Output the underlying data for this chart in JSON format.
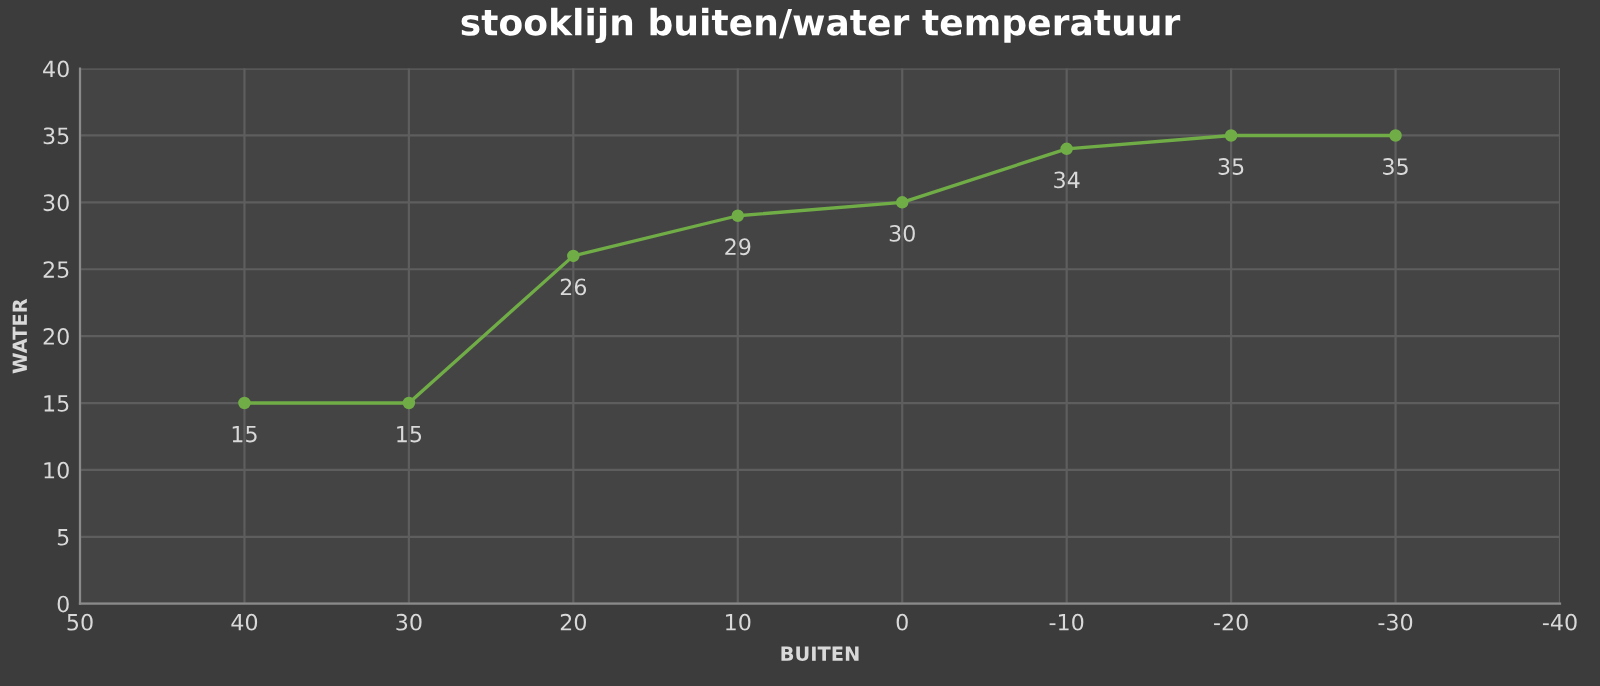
{
  "chart_data": {
    "type": "line",
    "title": "stooklijn buiten/water temperatuur",
    "xlabel": "BUITEN",
    "ylabel": "WATER",
    "x": [
      40,
      30,
      20,
      10,
      0,
      -10,
      -20,
      -30
    ],
    "series": [
      {
        "color": "#70ad47",
        "values": [
          15,
          15,
          26,
          29,
          30,
          34,
          35,
          35
        ]
      }
    ],
    "xlim": [
      50,
      -40
    ],
    "xticks": [
      50,
      40,
      30,
      20,
      10,
      0,
      -10,
      -20,
      -30,
      -40
    ],
    "ylim": [
      0,
      40
    ],
    "yticks": [
      0,
      5,
      10,
      15,
      20,
      25,
      30,
      35,
      40
    ],
    "grid": true,
    "marker": "circle",
    "line_style": "solid",
    "data_labels": true,
    "legend": false
  }
}
